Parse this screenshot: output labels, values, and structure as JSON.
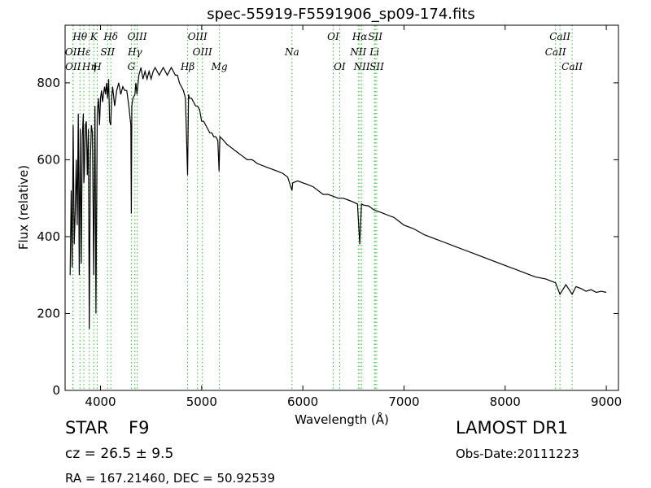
{
  "chart_data": {
    "type": "line",
    "title": "spec-55919-F5591906_sp09-174.fits",
    "xlabel": "Wavelength (Å)",
    "ylabel": "Flux (relative)",
    "xlim": [
      3650,
      9120
    ],
    "ylim": [
      0,
      950
    ],
    "xticks": [
      4000,
      5000,
      6000,
      7000,
      8000,
      9000
    ],
    "yticks": [
      0,
      200,
      400,
      600,
      800
    ],
    "grid": false,
    "legend": "none",
    "series": [
      {
        "x": [
          3700,
          3710,
          3720,
          3730,
          3740,
          3750,
          3760,
          3770,
          3780,
          3790,
          3800,
          3810,
          3820,
          3830,
          3835,
          3840,
          3850,
          3860,
          3870,
          3880,
          3889,
          3900,
          3910,
          3920,
          3933,
          3945,
          3955,
          3968,
          3980,
          3990,
          4000,
          4010,
          4020,
          4030,
          4040,
          4050,
          4060,
          4070,
          4080,
          4090,
          4101,
          4110,
          4120,
          4140,
          4160,
          4180,
          4200,
          4220,
          4240,
          4260,
          4280,
          4300,
          4305,
          4310,
          4320,
          4340,
          4350,
          4360,
          4380,
          4400,
          4420,
          4440,
          4460,
          4480,
          4500,
          4520,
          4540,
          4560,
          4580,
          4600,
          4620,
          4640,
          4660,
          4680,
          4700,
          4720,
          4740,
          4760,
          4780,
          4800,
          4820,
          4840,
          4861,
          4870,
          4880,
          4900,
          4920,
          4940,
          4960,
          4980,
          5000,
          5020,
          5040,
          5060,
          5080,
          5100,
          5120,
          5140,
          5160,
          5172,
          5180,
          5200,
          5250,
          5300,
          5350,
          5400,
          5450,
          5500,
          5550,
          5600,
          5650,
          5700,
          5750,
          5800,
          5850,
          5893,
          5900,
          5950,
          6000,
          6050,
          6100,
          6150,
          6200,
          6250,
          6300,
          6350,
          6400,
          6450,
          6500,
          6540,
          6563,
          6580,
          6600,
          6650,
          6700,
          6750,
          6800,
          6850,
          6900,
          6950,
          7000,
          7100,
          7200,
          7300,
          7400,
          7500,
          7600,
          7700,
          7800,
          7900,
          8000,
          8100,
          8200,
          8300,
          8400,
          8498,
          8542,
          8600,
          8662,
          8700,
          8750,
          8800,
          8850,
          8900,
          8950,
          9000
        ],
        "y": [
          300,
          520,
          320,
          690,
          380,
          460,
          600,
          430,
          720,
          300,
          680,
          330,
          660,
          720,
          540,
          560,
          690,
          700,
          560,
          680,
          160,
          600,
          690,
          670,
          300,
          740,
          200,
          720,
          760,
          690,
          760,
          780,
          750,
          770,
          790,
          770,
          800,
          760,
          810,
          700,
          690,
          760,
          790,
          740,
          780,
          800,
          770,
          790,
          780,
          780,
          740,
          690,
          460,
          740,
          760,
          770,
          800,
          770,
          820,
          840,
          810,
          830,
          810,
          830,
          810,
          830,
          840,
          830,
          820,
          830,
          840,
          830,
          820,
          830,
          840,
          830,
          820,
          820,
          800,
          790,
          780,
          760,
          560,
          770,
          760,
          760,
          750,
          740,
          740,
          730,
          700,
          700,
          690,
          680,
          670,
          670,
          660,
          660,
          650,
          570,
          660,
          655,
          640,
          630,
          620,
          610,
          600,
          600,
          590,
          585,
          580,
          575,
          570,
          565,
          555,
          520,
          540,
          545,
          540,
          535,
          530,
          520,
          510,
          510,
          505,
          500,
          500,
          495,
          490,
          485,
          380,
          485,
          482,
          480,
          470,
          465,
          460,
          455,
          450,
          440,
          430,
          420,
          405,
          395,
          385,
          375,
          365,
          355,
          345,
          335,
          325,
          315,
          305,
          295,
          290,
          280,
          250,
          275,
          250,
          270,
          265,
          258,
          262,
          255,
          258,
          255
        ]
      }
    ],
    "line_markers": [
      {
        "label": "Hθ",
        "x": 3797,
        "row": 0
      },
      {
        "label": "K",
        "x": 3934,
        "row": 0
      },
      {
        "label": "Hδ",
        "x": 4102,
        "row": 0
      },
      {
        "label": "OIII",
        "x": 4363,
        "row": 0
      },
      {
        "label": "OIII",
        "x": 4959,
        "row": 0
      },
      {
        "label": "OI",
        "x": 6300,
        "row": 0
      },
      {
        "label": "Hα",
        "x": 6563,
        "row": 0
      },
      {
        "label": "SII",
        "x": 6716,
        "row": 0
      },
      {
        "label": "CaII",
        "x": 8542,
        "row": 0
      },
      {
        "label": "OII",
        "x": 3727,
        "row": 1
      },
      {
        "label": "Hε",
        "x": 3835,
        "row": 1
      },
      {
        "label": "SII",
        "x": 4070,
        "row": 1
      },
      {
        "label": "Hγ",
        "x": 4340,
        "row": 1
      },
      {
        "label": "OIII",
        "x": 5007,
        "row": 1
      },
      {
        "label": "NII",
        "x": 6548,
        "row": 1
      },
      {
        "label": "Li",
        "x": 6708,
        "row": 1
      },
      {
        "label": "CaII",
        "x": 8498,
        "row": 1
      },
      {
        "label": "OII",
        "x": 3729,
        "row": 2
      },
      {
        "label": "Hη",
        "x": 3889,
        "row": 2
      },
      {
        "label": "H",
        "x": 3968,
        "row": 2
      },
      {
        "label": "G",
        "x": 4305,
        "row": 2
      },
      {
        "label": "Hβ",
        "x": 4861,
        "row": 2
      },
      {
        "label": "Mg",
        "x": 5175,
        "row": 2
      },
      {
        "label": "Na",
        "x": 5893,
        "row": 1
      },
      {
        "label": "OI",
        "x": 6364,
        "row": 2
      },
      {
        "label": "NII",
        "x": 6583,
        "row": 2
      },
      {
        "label": "SII",
        "x": 6731,
        "row": 2
      },
      {
        "label": "CaII",
        "x": 8662,
        "row": 2
      }
    ],
    "colors": {
      "spectrum": "#000000",
      "marker": "#33bb33",
      "axis": "#000000"
    }
  },
  "info": {
    "object_class": "STAR",
    "subclass": "F9",
    "survey": "LAMOST DR1",
    "redshift": "cz = 26.5 ± 9.5",
    "obs_date": "Obs-Date:20111223",
    "coords": "RA = 167.21460, DEC = 50.92539"
  }
}
